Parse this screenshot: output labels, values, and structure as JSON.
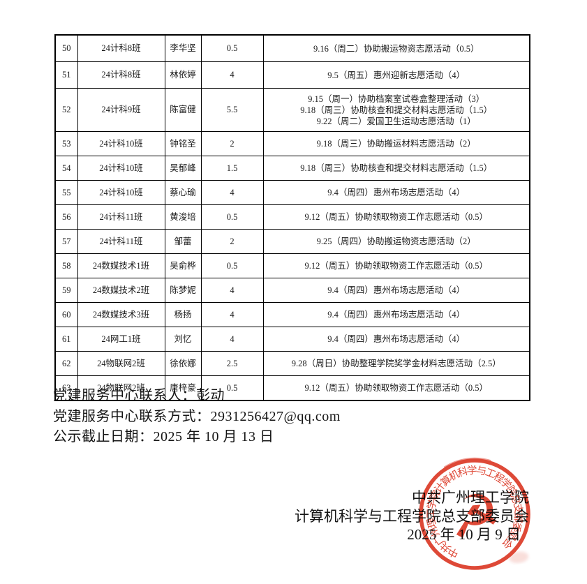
{
  "colors": {
    "seal_red": "#dc3926",
    "ink_black": "#1b1b1b",
    "background": "#ffffff"
  },
  "table": {
    "rows": [
      {
        "no": "50",
        "class_name": "24计科8班",
        "student": "李华坚",
        "hours": "0.5",
        "activities": [
          "9.16（周二）协助搬运物资志愿活动（0.5）"
        ]
      },
      {
        "no": "51",
        "class_name": "24计科8班",
        "student": "林依婷",
        "hours": "4",
        "activities": [
          "9.5（周五）惠州迎新志愿活动（4）"
        ]
      },
      {
        "no": "52",
        "class_name": "24计科9班",
        "student": "陈富健",
        "hours": "5.5",
        "activities": [
          "9.15（周一）协助档案室试卷盒整理活动（3）",
          "9.18（周三）协助核查和提交材料志愿活动（1.5）",
          "9.22（周二）爱国卫生运动志愿活动（1）"
        ]
      },
      {
        "no": "53",
        "class_name": "24计科10班",
        "student": "钟铭圣",
        "hours": "2",
        "activities": [
          "9.18（周三）协助搬运材料志愿活动（2）"
        ]
      },
      {
        "no": "54",
        "class_name": "24计科10班",
        "student": "吴郁峰",
        "hours": "1.5",
        "activities": [
          "9.18（周三）协助核查和提交材料志愿活动（1.5）"
        ]
      },
      {
        "no": "55",
        "class_name": "24计科10班",
        "student": "蔡心瑜",
        "hours": "4",
        "activities": [
          "9.4（周四）惠州布场志愿活动（4）"
        ]
      },
      {
        "no": "56",
        "class_name": "24计科11班",
        "student": "黄浚培",
        "hours": "0.5",
        "activities": [
          "9.12（周五）协助领取物资工作志愿活动（0.5）"
        ]
      },
      {
        "no": "57",
        "class_name": "24计科11班",
        "student": "邹蕾",
        "hours": "2",
        "activities": [
          "9.25（周四）协助搬运物资志愿活动（2）"
        ]
      },
      {
        "no": "58",
        "class_name": "24数媒技术1班",
        "student": "吴俞桦",
        "hours": "0.5",
        "activities": [
          "9.12（周五）协助领取物资工作志愿活动（0.5）"
        ]
      },
      {
        "no": "59",
        "class_name": "24数媒技术2班",
        "student": "陈梦妮",
        "hours": "4",
        "activities": [
          "9.4（周四）惠州布场志愿活动（4）"
        ]
      },
      {
        "no": "60",
        "class_name": "24数媒技术3班",
        "student": "杨扬",
        "hours": "4",
        "activities": [
          "9.4（周四）惠州布场志愿活动（4）"
        ]
      },
      {
        "no": "61",
        "class_name": "24网工1班",
        "student": "刘忆",
        "hours": "4",
        "activities": [
          "9.4（周四）惠州布场志愿活动（4）"
        ]
      },
      {
        "no": "62",
        "class_name": "24物联网2班",
        "student": "徐依娜",
        "hours": "2.5",
        "activities": [
          "9.28（周日）协助整理学院奖学金材料志愿活动（2.5）"
        ]
      },
      {
        "no": "63",
        "class_name": "24物联网2班",
        "student": "唐梓豪",
        "hours": "0.5",
        "activities": [
          "9.12（周五）协助领取物资工作志愿活动（0.5）"
        ]
      }
    ]
  },
  "footer": {
    "contact_person": "党建服务中心联系人：彭动",
    "contact_method": "党建服务中心联系方式：2931256427@qq.com",
    "deadline": "公示截止日期：2025 年 10 月 13 日"
  },
  "signature": {
    "org_line1": "中共广州理工学院",
    "org_line2": "计算机科学与工程学院总支部委员会",
    "date": "2025 年 10 月 9 日"
  },
  "stamp": {
    "ring_text": "中共广州理工学院计算机科学与工程学院总支部委员会",
    "emblem_glyph": "☭",
    "emblem_name": "hammer-and-sickle"
  }
}
